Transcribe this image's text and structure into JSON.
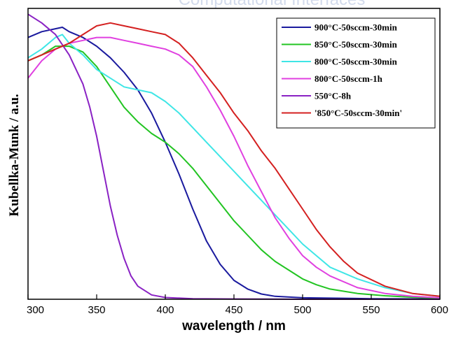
{
  "watermark": "Computational Interfaces",
  "chart_data": {
    "type": "line",
    "title": "",
    "xlabel": "wavelength / nm",
    "ylabel": "Kubellka-Munk / a.u.",
    "xlim": [
      300,
      600
    ],
    "ylim": [
      0,
      1
    ],
    "xticks": [
      300,
      350,
      400,
      450,
      500,
      550,
      600
    ],
    "yticks_visible": false,
    "grid": false,
    "legend_position": "top-right",
    "series": [
      {
        "name": "900°C-50sccm-30min",
        "color": "#1a1a9e",
        "x": [
          300,
          310,
          320,
          325,
          330,
          340,
          350,
          360,
          370,
          380,
          390,
          400,
          410,
          420,
          430,
          440,
          450,
          460,
          470,
          480,
          500,
          550,
          600
        ],
        "y": [
          0.9,
          0.92,
          0.93,
          0.935,
          0.92,
          0.9,
          0.87,
          0.83,
          0.78,
          0.72,
          0.64,
          0.54,
          0.43,
          0.31,
          0.2,
          0.12,
          0.065,
          0.035,
          0.018,
          0.01,
          0.005,
          0.002,
          0.001
        ]
      },
      {
        "name": "850°C-50sccm-30min",
        "color": "#22c422",
        "x": [
          300,
          310,
          320,
          330,
          340,
          350,
          360,
          370,
          380,
          390,
          400,
          410,
          420,
          430,
          440,
          450,
          460,
          470,
          480,
          490,
          500,
          510,
          520,
          540,
          560,
          580,
          600
        ],
        "y": [
          0.82,
          0.84,
          0.87,
          0.87,
          0.85,
          0.8,
          0.73,
          0.66,
          0.61,
          0.57,
          0.54,
          0.5,
          0.45,
          0.39,
          0.33,
          0.27,
          0.22,
          0.17,
          0.13,
          0.1,
          0.07,
          0.05,
          0.035,
          0.02,
          0.012,
          0.007,
          0.004
        ]
      },
      {
        "name": "800°C-50sccm-30min",
        "color": "#3fe6e6",
        "x": [
          300,
          310,
          320,
          325,
          330,
          340,
          350,
          360,
          370,
          380,
          390,
          400,
          410,
          420,
          430,
          440,
          450,
          460,
          470,
          480,
          490,
          500,
          510,
          520,
          540,
          560,
          580,
          600
        ],
        "y": [
          0.83,
          0.86,
          0.9,
          0.91,
          0.88,
          0.84,
          0.79,
          0.76,
          0.73,
          0.72,
          0.71,
          0.68,
          0.64,
          0.59,
          0.54,
          0.49,
          0.44,
          0.39,
          0.34,
          0.29,
          0.24,
          0.19,
          0.15,
          0.11,
          0.07,
          0.04,
          0.02,
          0.01
        ]
      },
      {
        "name": "800°C-50sccm-1h",
        "color": "#e040e0",
        "x": [
          300,
          310,
          320,
          330,
          340,
          350,
          360,
          370,
          380,
          390,
          400,
          410,
          420,
          430,
          440,
          450,
          460,
          470,
          480,
          490,
          500,
          510,
          520,
          540,
          560,
          580,
          600
        ],
        "y": [
          0.76,
          0.82,
          0.86,
          0.88,
          0.89,
          0.9,
          0.9,
          0.89,
          0.88,
          0.87,
          0.86,
          0.84,
          0.8,
          0.73,
          0.65,
          0.56,
          0.46,
          0.37,
          0.28,
          0.21,
          0.15,
          0.11,
          0.08,
          0.04,
          0.02,
          0.01,
          0.005
        ]
      },
      {
        "name": "550°C-8h",
        "color": "#8a22c4",
        "x": [
          300,
          310,
          320,
          330,
          340,
          345,
          350,
          355,
          360,
          365,
          370,
          375,
          380,
          390,
          400,
          420,
          450,
          500,
          600
        ],
        "y": [
          0.98,
          0.95,
          0.91,
          0.84,
          0.74,
          0.66,
          0.56,
          0.44,
          0.32,
          0.22,
          0.14,
          0.08,
          0.045,
          0.015,
          0.006,
          0.002,
          0.001,
          0.0,
          0.0
        ]
      },
      {
        "name": "'850°C-50sccm-30min'",
        "color": "#d42020",
        "x": [
          300,
          310,
          320,
          330,
          340,
          350,
          360,
          370,
          380,
          390,
          400,
          410,
          420,
          430,
          440,
          450,
          460,
          470,
          480,
          490,
          500,
          510,
          520,
          530,
          540,
          560,
          580,
          600
        ],
        "y": [
          0.82,
          0.84,
          0.86,
          0.88,
          0.91,
          0.94,
          0.95,
          0.94,
          0.93,
          0.92,
          0.91,
          0.88,
          0.83,
          0.77,
          0.71,
          0.64,
          0.58,
          0.51,
          0.45,
          0.38,
          0.31,
          0.24,
          0.18,
          0.13,
          0.09,
          0.045,
          0.02,
          0.01
        ]
      }
    ]
  }
}
